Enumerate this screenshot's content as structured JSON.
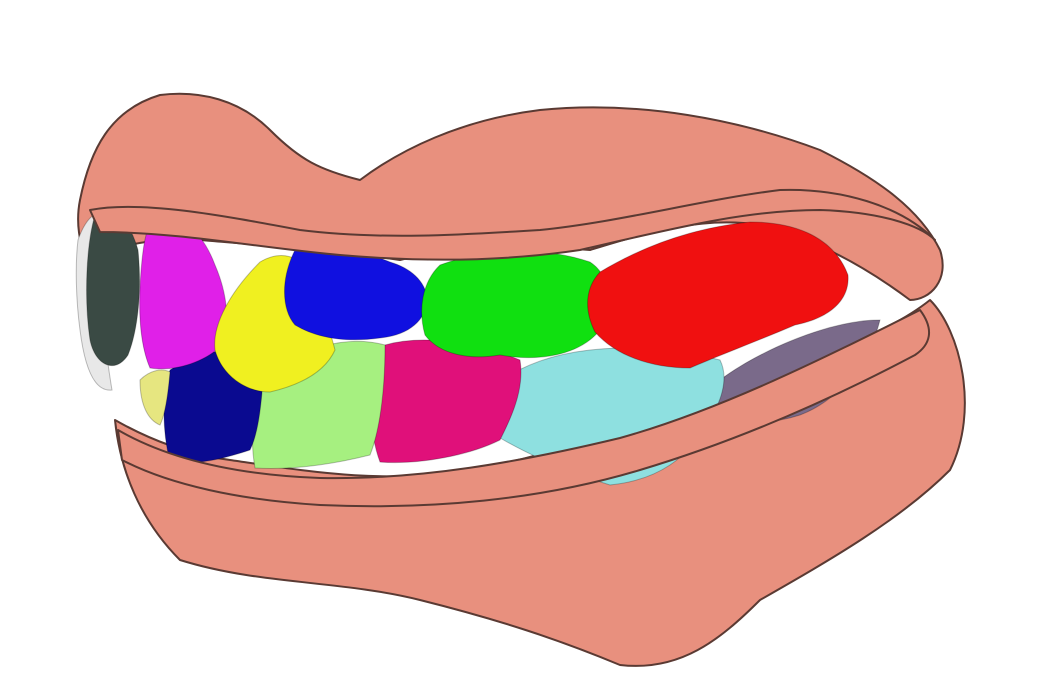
{
  "scene": {
    "background": "#ffffff",
    "gum_color": "#e8907e",
    "gum_shadow": "#5a3a33",
    "teeth": {
      "upper": [
        {
          "name": "upper-incisor-grey",
          "color": "#3a4a44"
        },
        {
          "name": "upper-incisor-magenta",
          "color": "#e020e8"
        },
        {
          "name": "upper-canine-yellow",
          "color": "#f0f020"
        },
        {
          "name": "upper-premolar-blue",
          "color": "#1010e0"
        },
        {
          "name": "upper-premolar-green",
          "color": "#10e010"
        },
        {
          "name": "upper-molar-red",
          "color": "#f01010"
        }
      ],
      "lower": [
        {
          "name": "lower-incisor-white",
          "color": "#e8e8e8"
        },
        {
          "name": "lower-incisor-olive",
          "color": "#e6e680"
        },
        {
          "name": "lower-canine-navy",
          "color": "#0a0a90"
        },
        {
          "name": "lower-premolar-lightgreen",
          "color": "#a6f080"
        },
        {
          "name": "lower-premolar-pink",
          "color": "#e0107a"
        },
        {
          "name": "lower-molar-cyan",
          "color": "#8ee0e0"
        },
        {
          "name": "lower-molar-purple",
          "color": "#7a6a8a"
        }
      ]
    }
  }
}
